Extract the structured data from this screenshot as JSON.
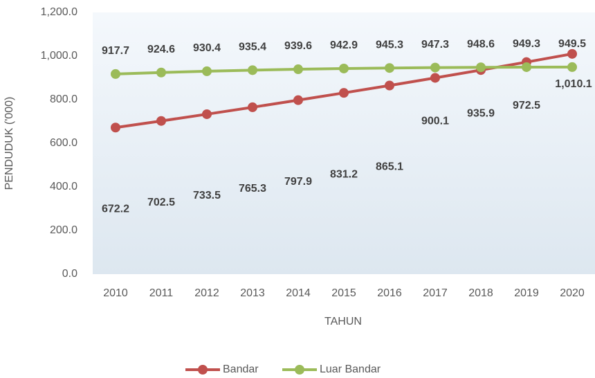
{
  "chart_data": {
    "type": "line",
    "x_label": "TAHUN",
    "y_label": "PENDUDUK ('000)",
    "categories": [
      "2010",
      "2011",
      "2012",
      "2013",
      "2014",
      "2015",
      "2016",
      "2017",
      "2018",
      "2019",
      "2020"
    ],
    "series": [
      {
        "name": "Bandar",
        "color": "#c0504d",
        "values": [
          672.2,
          702.5,
          733.5,
          765.3,
          797.9,
          831.2,
          865.1,
          900.1,
          935.9,
          972.5,
          1010.1
        ],
        "value_labels": [
          "672.2",
          "702.5",
          "733.5",
          "765.3",
          "797.9",
          "831.2",
          "865.1",
          "900.1",
          "935.9",
          "972.5",
          "1,010.1"
        ]
      },
      {
        "name": "Luar Bandar",
        "color": "#9bbb59",
        "values": [
          917.7,
          924.6,
          930.4,
          935.4,
          939.6,
          942.9,
          945.3,
          947.3,
          948.6,
          949.3,
          949.5
        ]
      }
    ],
    "ylim": [
      0,
      1200
    ],
    "yticks": [
      {
        "value": 0,
        "label": "0.0"
      },
      {
        "value": 200,
        "label": "200.0"
      },
      {
        "value": 400,
        "label": "400.0"
      },
      {
        "value": 600,
        "label": "600.0"
      },
      {
        "value": 800,
        "label": "800.0"
      },
      {
        "value": 1000,
        "label": "1,000.0"
      },
      {
        "value": 1200,
        "label": "1,200.0"
      }
    ],
    "legend": "bottom"
  }
}
